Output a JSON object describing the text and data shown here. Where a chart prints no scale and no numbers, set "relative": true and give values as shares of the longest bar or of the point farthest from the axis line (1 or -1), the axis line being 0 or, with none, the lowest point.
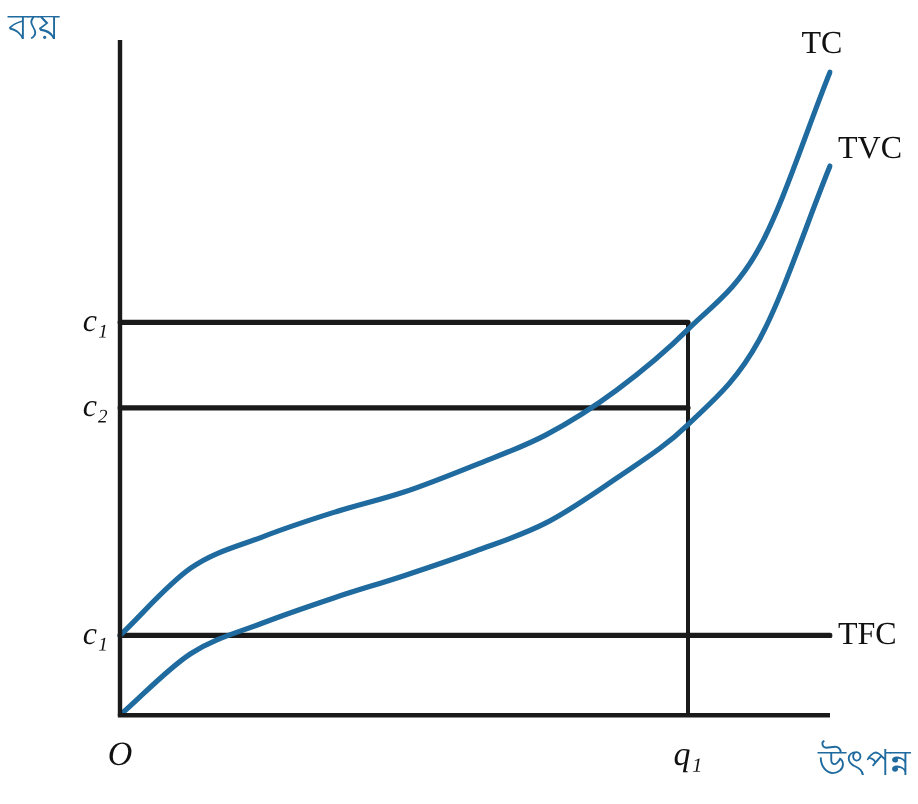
{
  "chart_data": {
    "type": "line",
    "relative": true,
    "ylabel": "ব্যয়",
    "xlabel": "উৎপন্ন",
    "categories": [
      "O",
      null,
      null,
      null,
      null,
      null,
      null,
      null,
      "q₁",
      null,
      null
    ],
    "series": [
      {
        "name": "TC",
        "color": "#1f6a9e",
        "values": [
          0.124,
          0.229,
          0.277,
          0.315,
          0.347,
          0.389,
          0.436,
          0.506,
          0.6,
          0.726,
          1
        ]
      },
      {
        "name": "TVC",
        "color": "#1f6a9e",
        "values": [
          0,
          0.096,
          0.143,
          0.182,
          0.217,
          0.255,
          0.299,
          0.369,
          0.452,
          0.583,
          0.854
        ]
      },
      {
        "name": "TFC",
        "color": "#1a1a1a",
        "values": [
          0.124,
          0.124,
          0.124,
          0.124,
          0.124,
          0.124,
          0.124,
          0.124,
          0.124,
          0.124,
          0.124
        ]
      },
      {
        "name": "c₁",
        "color": "#1a1a1a",
        "values": [
          0.611,
          0.611,
          0.611,
          0.611,
          0.611,
          0.611,
          0.611,
          0.611,
          0.611,
          null,
          null
        ]
      },
      {
        "name": "c₂",
        "color": "#1a1a1a",
        "values": [
          0.478,
          0.478,
          0.478,
          0.478,
          0.478,
          0.478,
          0.478,
          0.478,
          0.478,
          null,
          null
        ]
      },
      {
        "color": "#1a1a1a",
        "x": [
          "q₁",
          "q₁"
        ],
        "values": [
          0,
          0.611
        ]
      }
    ],
    "annotations": [
      "c₁"
    ],
    "marker": "none",
    "line_style": "solid",
    "grid": false,
    "legend": false
  }
}
